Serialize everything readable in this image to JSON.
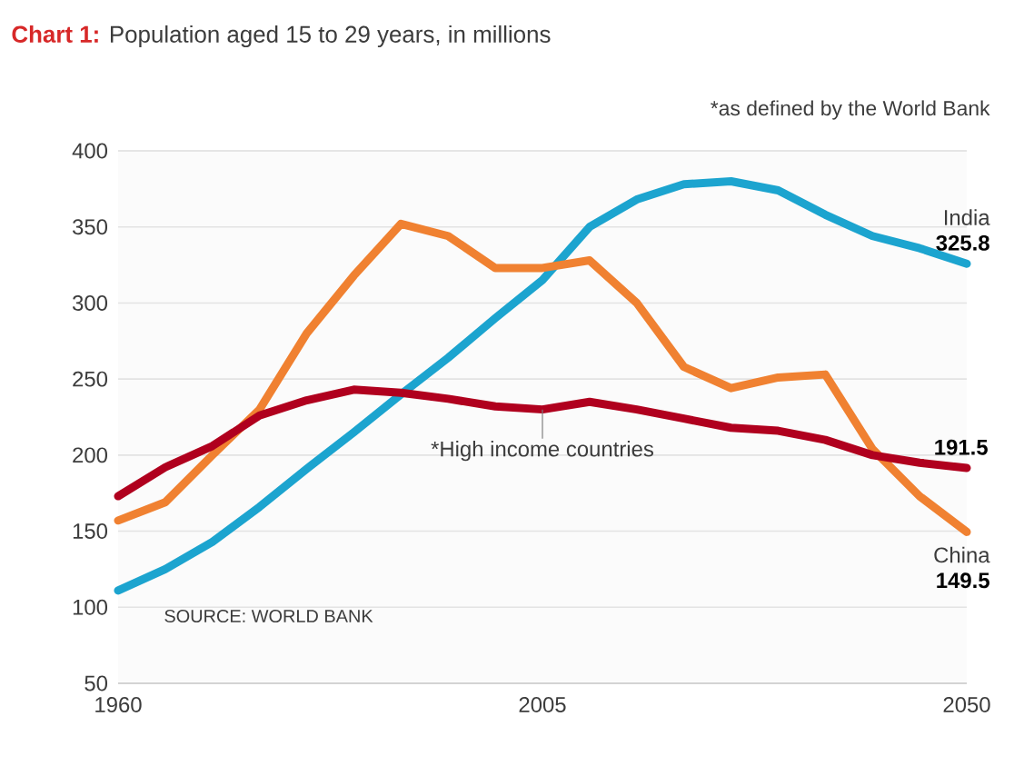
{
  "chart_data": {
    "type": "line",
    "title": "**Chart 1:** Population aged 15 to 29 years, in millions",
    "x": [
      1960,
      1965,
      1970,
      1975,
      1980,
      1985,
      1990,
      1995,
      2000,
      2005,
      2010,
      2015,
      2020,
      2025,
      2030,
      2035,
      2040,
      2045,
      2050
    ],
    "series": [
      {
        "name": "India",
        "color": "#1ca4cf",
        "values": [
          111,
          125,
          143,
          166,
          191,
          215,
          240,
          264,
          290,
          315,
          350,
          368,
          378,
          380,
          374,
          358,
          344,
          336,
          325.8
        ],
        "value_labels": [
          null,
          null,
          null,
          null,
          null,
          null,
          null,
          null,
          null,
          null,
          null,
          null,
          null,
          null,
          null,
          null,
          null,
          null,
          "325.8"
        ]
      },
      {
        "name": "China",
        "color": "#f08131",
        "values": [
          157,
          169,
          200,
          230,
          280,
          318,
          352,
          344,
          323,
          323,
          328,
          300,
          258,
          244,
          251,
          253,
          204,
          173,
          149.5
        ],
        "value_labels": [
          null,
          null,
          null,
          null,
          null,
          null,
          null,
          null,
          null,
          null,
          null,
          null,
          null,
          null,
          null,
          null,
          null,
          null,
          "149.5"
        ]
      },
      {
        "color": "#b0001e",
        "values": [
          173,
          192,
          206,
          226,
          236,
          243,
          241,
          237,
          232,
          230,
          235,
          230,
          224,
          218,
          216,
          210,
          200,
          195,
          191.5
        ],
        "value_labels": [
          null,
          null,
          null,
          null,
          null,
          null,
          null,
          null,
          null,
          null,
          null,
          null,
          null,
          null,
          null,
          null,
          null,
          null,
          "191.5"
        ]
      }
    ],
    "xlim": [
      1960,
      2050
    ],
    "ylim": [
      50,
      400
    ],
    "xticks": [
      1960,
      2005,
      2050
    ],
    "yticks": [
      50,
      100,
      150,
      200,
      250,
      300,
      350,
      400
    ],
    "grid": "y",
    "annotations": [
      "*as defined by the World Bank",
      {
        "text": "*High income countries",
        "x": 2005,
        "y": 230
      },
      "SOURCE: WORLD BANK"
    ]
  }
}
